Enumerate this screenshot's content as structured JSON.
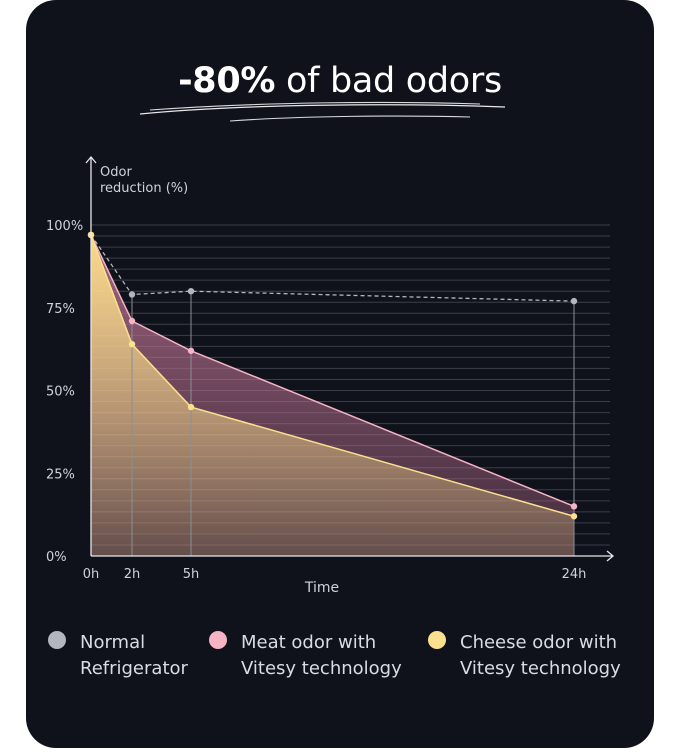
{
  "headline": {
    "bold": "-80%",
    "rest": " of bad odors"
  },
  "chart_data": {
    "type": "area",
    "ylabel": "Odor\nreduction (%)",
    "xlabel": "Time",
    "ylim": [
      0,
      100
    ],
    "y_ticks": [
      "0%",
      "25%",
      "50%",
      "75%",
      "100%"
    ],
    "x": [
      0,
      2,
      5,
      24
    ],
    "x_tick_labels": [
      "0h",
      "2h",
      "5h",
      "24h"
    ],
    "grid": true,
    "legend_position": "bottom",
    "series": [
      {
        "name": "Normal\nRefrigerator",
        "color": "#b3b6bd",
        "style": "dashed",
        "values": [
          97,
          79,
          80,
          77
        ]
      },
      {
        "name": "Meat odor with\nVitesy technology",
        "color": "#f5b3c3",
        "style": "area",
        "values": [
          97,
          71,
          62,
          15
        ]
      },
      {
        "name": "Cheese odor with\nVitesy technology",
        "color": "#fde08c",
        "style": "area",
        "values": [
          97,
          64,
          45,
          12
        ]
      }
    ]
  }
}
